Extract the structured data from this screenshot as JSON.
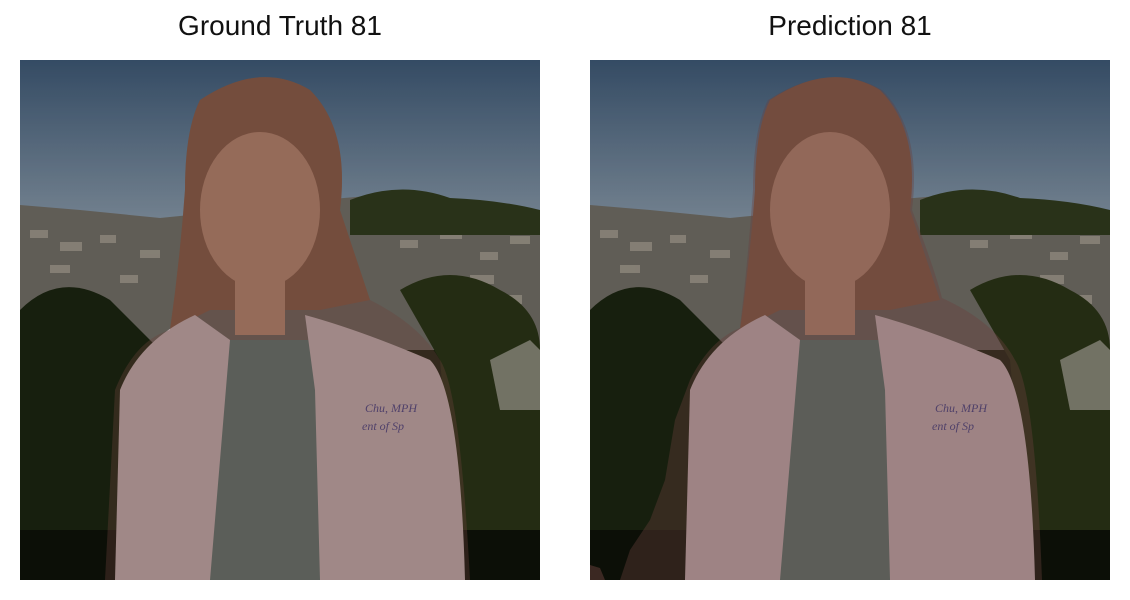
{
  "panels": [
    {
      "title": "Ground Truth 81"
    },
    {
      "title": "Prediction 81"
    }
  ],
  "photo": {
    "coat_text_line1": "Chu, MPH",
    "coat_text_line2": "ent of Sp"
  },
  "colors": {
    "mask_overlay": "#7a4a46",
    "sky_top": "#3c5672",
    "sky_bottom": "#7d8fa2",
    "foliage": "#1f2a12",
    "coat": "#d8c6c8",
    "scrubs": "#5f7f78",
    "coat_text": "#4a4a96"
  }
}
